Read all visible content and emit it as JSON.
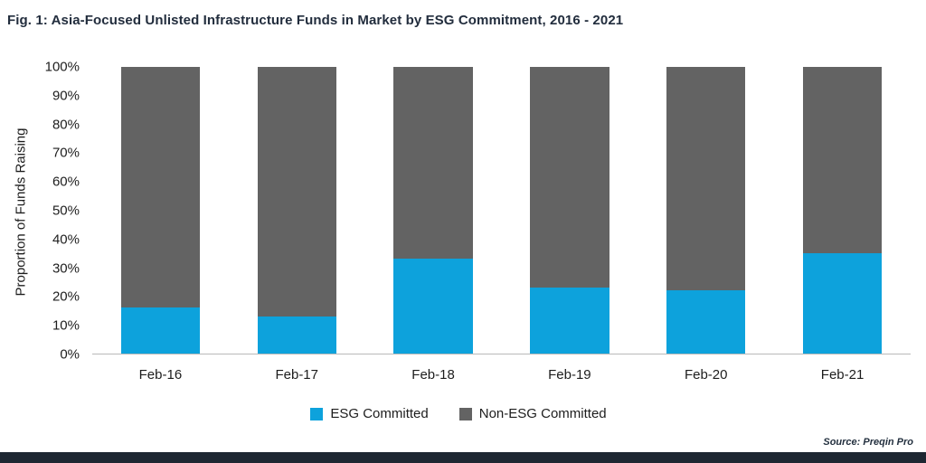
{
  "title": "Fig. 1: Asia-Focused Unlisted Infrastructure Funds in Market by ESG Commitment, 2016 - 2021",
  "source": "Source: Preqin Pro",
  "colors": {
    "esg_blue": "#0da2dc",
    "non_esg_gray": "#636363",
    "title_navy": "#222d3d",
    "footer_bar": "#1e2732"
  },
  "chart_data": {
    "type": "bar",
    "stacked": true,
    "title": "Fig. 1: Asia-Focused Unlisted Infrastructure Funds in Market by ESG Commitment, 2016 - 2021",
    "categories": [
      "Feb-16",
      "Feb-17",
      "Feb-18",
      "Feb-19",
      "Feb-20",
      "Feb-21"
    ],
    "series": [
      {
        "name": "ESG Committed",
        "color": "#0da2dc",
        "values": [
          16,
          13,
          33,
          23,
          22,
          35
        ]
      },
      {
        "name": "Non-ESG Committed",
        "color": "#636363",
        "values": [
          84,
          87,
          67,
          77,
          78,
          65
        ]
      }
    ],
    "xlabel": "",
    "ylabel": "Proportion of Funds Raising",
    "ylim": [
      0,
      100
    ],
    "yticks": [
      "0%",
      "10%",
      "20%",
      "30%",
      "40%",
      "50%",
      "60%",
      "70%",
      "80%",
      "90%",
      "100%"
    ],
    "grid": false,
    "legend_position": "bottom"
  }
}
